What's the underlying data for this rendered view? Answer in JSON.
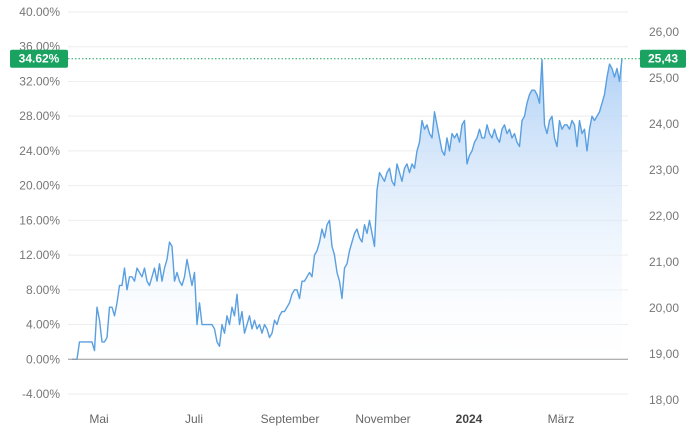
{
  "chart_data": {
    "type": "area",
    "title": "",
    "xlabel": "",
    "ylabel": "",
    "x_ticks": [
      "Mai",
      "Juli",
      "September",
      "November",
      "2024",
      "März"
    ],
    "y_left": {
      "unit": "percent",
      "ylim": [
        -6.0,
        42.0
      ],
      "ticks": [
        "40.00%",
        "36.00%",
        "32.00%",
        "28.00%",
        "24.00%",
        "20.00%",
        "16.00%",
        "12.00%",
        "8.00%",
        "4.00%",
        "0.00%",
        "-4.00%"
      ],
      "tick_values": [
        40,
        36,
        32,
        28,
        24,
        20,
        16,
        12,
        8,
        4,
        0,
        -4
      ]
    },
    "y_right": {
      "ylim": [
        18.0,
        26.3
      ],
      "ticks": [
        "26,00",
        "25,00",
        "24,00",
        "23,00",
        "22,00",
        "21,00",
        "20,00",
        "19,00",
        "18,00"
      ],
      "tick_values": [
        26,
        25,
        24,
        23,
        22,
        21,
        20,
        19,
        18
      ]
    },
    "current": {
      "percent_label": "34.62%",
      "price_label": "25,43",
      "percent_value": 34.62
    },
    "grid": "horizontal",
    "colors": {
      "line": "#5a9fe0",
      "fill_top": "#a8ccf5",
      "fill_bottom": "#ffffff",
      "badge": "#1aa260",
      "baseline": "#999999",
      "grid": "#eeeeee",
      "dotted": "#1aa260"
    },
    "series": [
      {
        "values": [
          [
            0,
            0.0
          ],
          [
            2,
            0.0
          ],
          [
            3,
            2.0
          ],
          [
            5,
            2.0
          ],
          [
            7,
            2.0
          ],
          [
            8,
            2.0
          ],
          [
            9,
            1.0
          ],
          [
            10,
            6.0
          ],
          [
            11,
            4.5
          ],
          [
            12,
            2.0
          ],
          [
            13,
            2.0
          ],
          [
            14,
            2.5
          ],
          [
            15,
            6.0
          ],
          [
            16,
            6.0
          ],
          [
            17,
            5.0
          ],
          [
            18,
            6.5
          ],
          [
            19,
            8.5
          ],
          [
            20,
            8.5
          ],
          [
            21,
            10.5
          ],
          [
            22,
            8.0
          ],
          [
            23,
            9.5
          ],
          [
            24,
            9.5
          ],
          [
            25,
            9.0
          ],
          [
            26,
            10.5
          ],
          [
            27,
            10.0
          ],
          [
            28,
            9.5
          ],
          [
            29,
            10.5
          ],
          [
            30,
            9.0
          ],
          [
            31,
            8.5
          ],
          [
            32,
            9.5
          ],
          [
            33,
            10.5
          ],
          [
            34,
            9.0
          ],
          [
            35,
            11.0
          ],
          [
            36,
            9.0
          ],
          [
            37,
            10.5
          ],
          [
            38,
            11.5
          ],
          [
            39,
            13.5
          ],
          [
            40,
            13.0
          ],
          [
            41,
            9.0
          ],
          [
            42,
            10.0
          ],
          [
            43,
            9.0
          ],
          [
            44,
            8.5
          ],
          [
            45,
            9.5
          ],
          [
            46,
            11.5
          ],
          [
            47,
            10.0
          ],
          [
            48,
            8.5
          ],
          [
            49,
            10.0
          ],
          [
            50,
            4.0
          ],
          [
            51,
            6.5
          ],
          [
            52,
            4.0
          ],
          [
            53,
            4.0
          ],
          [
            54,
            4.0
          ],
          [
            55,
            4.0
          ],
          [
            56,
            4.0
          ],
          [
            57,
            3.5
          ],
          [
            58,
            2.0
          ],
          [
            59,
            1.5
          ],
          [
            60,
            4.0
          ],
          [
            61,
            3.0
          ],
          [
            62,
            5.0
          ],
          [
            63,
            4.0
          ],
          [
            64,
            6.0
          ],
          [
            65,
            5.0
          ],
          [
            66,
            7.5
          ],
          [
            67,
            4.0
          ],
          [
            68,
            5.5
          ],
          [
            69,
            3.0
          ],
          [
            70,
            4.0
          ],
          [
            71,
            5.0
          ],
          [
            72,
            3.5
          ],
          [
            73,
            4.5
          ],
          [
            74,
            3.5
          ],
          [
            75,
            4.0
          ],
          [
            76,
            3.0
          ],
          [
            77,
            4.0
          ],
          [
            78,
            3.5
          ],
          [
            79,
            2.5
          ],
          [
            80,
            3.0
          ],
          [
            81,
            4.5
          ],
          [
            82,
            4.0
          ],
          [
            83,
            5.0
          ],
          [
            84,
            5.5
          ],
          [
            85,
            5.5
          ],
          [
            86,
            6.0
          ],
          [
            87,
            6.5
          ],
          [
            88,
            7.5
          ],
          [
            89,
            8.0
          ],
          [
            90,
            8.0
          ],
          [
            91,
            7.0
          ],
          [
            92,
            9.0
          ],
          [
            93,
            9.0
          ],
          [
            94,
            9.5
          ],
          [
            95,
            10.0
          ],
          [
            96,
            9.5
          ],
          [
            97,
            12.0
          ],
          [
            98,
            12.5
          ],
          [
            99,
            13.5
          ],
          [
            100,
            15.0
          ],
          [
            101,
            14.0
          ],
          [
            102,
            15.5
          ],
          [
            103,
            16.0
          ],
          [
            104,
            13.0
          ],
          [
            105,
            12.0
          ],
          [
            106,
            10.0
          ],
          [
            107,
            9.0
          ],
          [
            108,
            7.0
          ],
          [
            109,
            10.5
          ],
          [
            110,
            11.0
          ],
          [
            111,
            12.5
          ],
          [
            112,
            13.5
          ],
          [
            113,
            14.5
          ],
          [
            114,
            15.0
          ],
          [
            115,
            14.0
          ],
          [
            116,
            13.5
          ],
          [
            117,
            15.5
          ],
          [
            118,
            14.5
          ],
          [
            119,
            16.0
          ],
          [
            120,
            14.5
          ],
          [
            121,
            13.0
          ],
          [
            122,
            19.5
          ],
          [
            123,
            21.5
          ],
          [
            124,
            21.0
          ],
          [
            125,
            20.5
          ],
          [
            126,
            21.5
          ],
          [
            127,
            22.0
          ],
          [
            128,
            20.5
          ],
          [
            129,
            20.0
          ],
          [
            130,
            22.5
          ],
          [
            131,
            21.5
          ],
          [
            132,
            20.5
          ],
          [
            133,
            22.0
          ],
          [
            134,
            22.5
          ],
          [
            135,
            21.5
          ],
          [
            136,
            22.5
          ],
          [
            137,
            22.0
          ],
          [
            138,
            24.0
          ],
          [
            139,
            25.0
          ],
          [
            140,
            27.5
          ],
          [
            141,
            26.5
          ],
          [
            142,
            27.0
          ],
          [
            143,
            26.0
          ],
          [
            144,
            25.5
          ],
          [
            145,
            28.5
          ],
          [
            146,
            27.0
          ],
          [
            147,
            25.5
          ],
          [
            148,
            24.0
          ],
          [
            149,
            23.5
          ],
          [
            150,
            25.5
          ],
          [
            151,
            24.0
          ],
          [
            152,
            26.0
          ],
          [
            153,
            25.5
          ],
          [
            154,
            26.0
          ],
          [
            155,
            25.0
          ],
          [
            156,
            27.0
          ],
          [
            157,
            27.5
          ],
          [
            158,
            22.5
          ],
          [
            159,
            23.5
          ],
          [
            160,
            24.0
          ],
          [
            161,
            25.0
          ],
          [
            162,
            25.5
          ],
          [
            163,
            26.5
          ],
          [
            164,
            25.5
          ],
          [
            165,
            25.5
          ],
          [
            166,
            27.0
          ],
          [
            167,
            26.0
          ],
          [
            168,
            25.5
          ],
          [
            169,
            26.5
          ],
          [
            170,
            25.5
          ],
          [
            171,
            25.0
          ],
          [
            172,
            26.5
          ],
          [
            173,
            27.0
          ],
          [
            174,
            26.0
          ],
          [
            175,
            26.5
          ],
          [
            176,
            25.5
          ],
          [
            177,
            26.0
          ],
          [
            178,
            25.0
          ],
          [
            179,
            24.5
          ],
          [
            180,
            27.5
          ],
          [
            181,
            28.0
          ],
          [
            182,
            29.5
          ],
          [
            183,
            30.5
          ],
          [
            184,
            31.0
          ],
          [
            185,
            31.0
          ],
          [
            186,
            30.5
          ],
          [
            187,
            29.5
          ],
          [
            188,
            34.5
          ],
          [
            189,
            27.0
          ],
          [
            190,
            26.0
          ],
          [
            191,
            27.5
          ],
          [
            192,
            28.0
          ],
          [
            193,
            25.5
          ],
          [
            194,
            24.5
          ],
          [
            195,
            27.5
          ],
          [
            196,
            26.5
          ],
          [
            197,
            27.0
          ],
          [
            198,
            27.0
          ],
          [
            199,
            26.5
          ],
          [
            200,
            27.5
          ],
          [
            201,
            27.0
          ],
          [
            202,
            24.5
          ],
          [
            203,
            27.5
          ],
          [
            204,
            26.0
          ],
          [
            205,
            26.5
          ],
          [
            206,
            24.0
          ],
          [
            207,
            26.5
          ],
          [
            208,
            28.0
          ],
          [
            209,
            27.5
          ],
          [
            210,
            28.0
          ],
          [
            211,
            28.5
          ],
          [
            212,
            29.5
          ],
          [
            213,
            30.5
          ],
          [
            214,
            32.5
          ],
          [
            215,
            34.0
          ],
          [
            216,
            33.5
          ],
          [
            217,
            32.5
          ],
          [
            218,
            33.5
          ],
          [
            219,
            32.0
          ],
          [
            220,
            34.62
          ]
        ]
      }
    ]
  }
}
